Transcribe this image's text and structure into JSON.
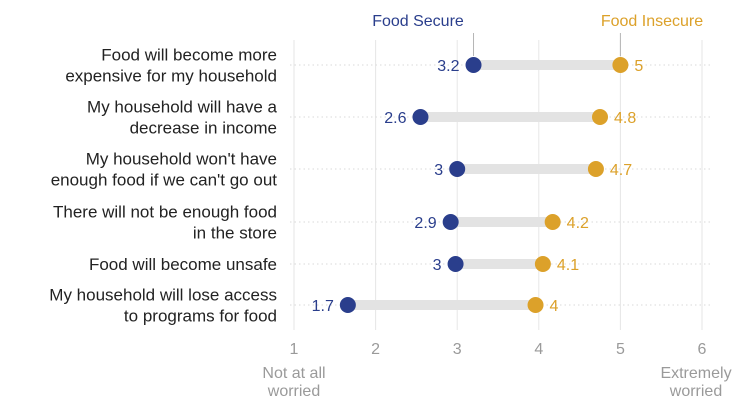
{
  "chart_data": {
    "type": "dumbbell",
    "x_ticks": [
      1,
      2,
      3,
      4,
      5,
      6
    ],
    "xlim": [
      1,
      6
    ],
    "x_end_labels": {
      "low": [
        "Not at all",
        "worried"
      ],
      "high": [
        "Extremely",
        "worried"
      ]
    },
    "series": [
      {
        "name": "Food Secure",
        "color": "#2a3e8c"
      },
      {
        "name": "Food Insecure",
        "color": "#dca12a"
      }
    ],
    "categories": [
      {
        "label": [
          "Food will become more",
          "expensive for my household"
        ],
        "secure": 3.2,
        "insecure": 5,
        "secure_label": "3.2",
        "insecure_label": "5"
      },
      {
        "label": [
          "My household will have a",
          "decrease in income"
        ],
        "secure": 2.55,
        "insecure": 4.75,
        "secure_label": "2.6",
        "insecure_label": "4.8"
      },
      {
        "label": [
          "My household won't have",
          "enough food if we can't go out"
        ],
        "secure": 3,
        "insecure": 4.7,
        "secure_label": "3",
        "insecure_label": "4.7"
      },
      {
        "label": [
          "There will not be enough food",
          "in the store"
        ],
        "secure": 2.92,
        "insecure": 4.17,
        "secure_label": "2.9",
        "insecure_label": "4.2"
      },
      {
        "label": [
          "Food will become unsafe"
        ],
        "secure": 2.98,
        "insecure": 4.05,
        "secure_label": "3",
        "insecure_label": "4.1"
      },
      {
        "label": [
          "My household will lose access",
          "to programs for food"
        ],
        "secure": 1.66,
        "insecure": 3.96,
        "secure_label": "1.7",
        "insecure_label": "4"
      }
    ],
    "grid": true,
    "legend_position": "top-right"
  }
}
